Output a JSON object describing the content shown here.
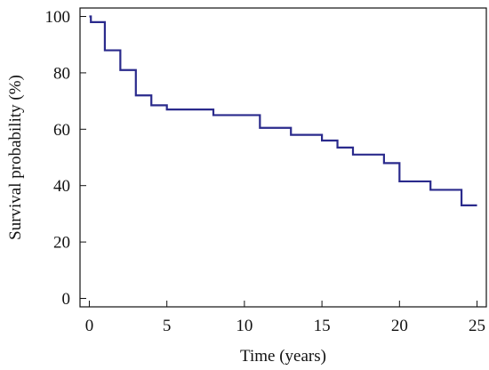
{
  "chart_data": {
    "type": "line",
    "step": true,
    "xlabel": "Time (years)",
    "ylabel": "Survival probability (%)",
    "xlim": [
      -0.6,
      25.6
    ],
    "ylim": [
      -3,
      103
    ],
    "xticks": [
      0,
      5,
      10,
      15,
      20,
      25
    ],
    "yticks": [
      0,
      20,
      40,
      60,
      80,
      100
    ],
    "xtick_labels": [
      "0",
      "5",
      "10",
      "15",
      "20",
      "25"
    ],
    "ytick_labels": [
      "0",
      "20",
      "40",
      "60",
      "80",
      "100"
    ],
    "grid": false,
    "line_color": "#2a2a8c",
    "axis_color": "#111111",
    "series": [
      {
        "x": [
          0,
          0.1,
          1,
          2,
          3,
          4,
          5,
          8,
          11,
          13,
          15,
          16,
          17,
          19,
          20,
          22,
          24,
          25
        ],
        "y": [
          100,
          98,
          88,
          81,
          72,
          68.5,
          67,
          65,
          60.5,
          58,
          56,
          53.5,
          51,
          48,
          41.5,
          38.5,
          33,
          33
        ]
      }
    ]
  }
}
